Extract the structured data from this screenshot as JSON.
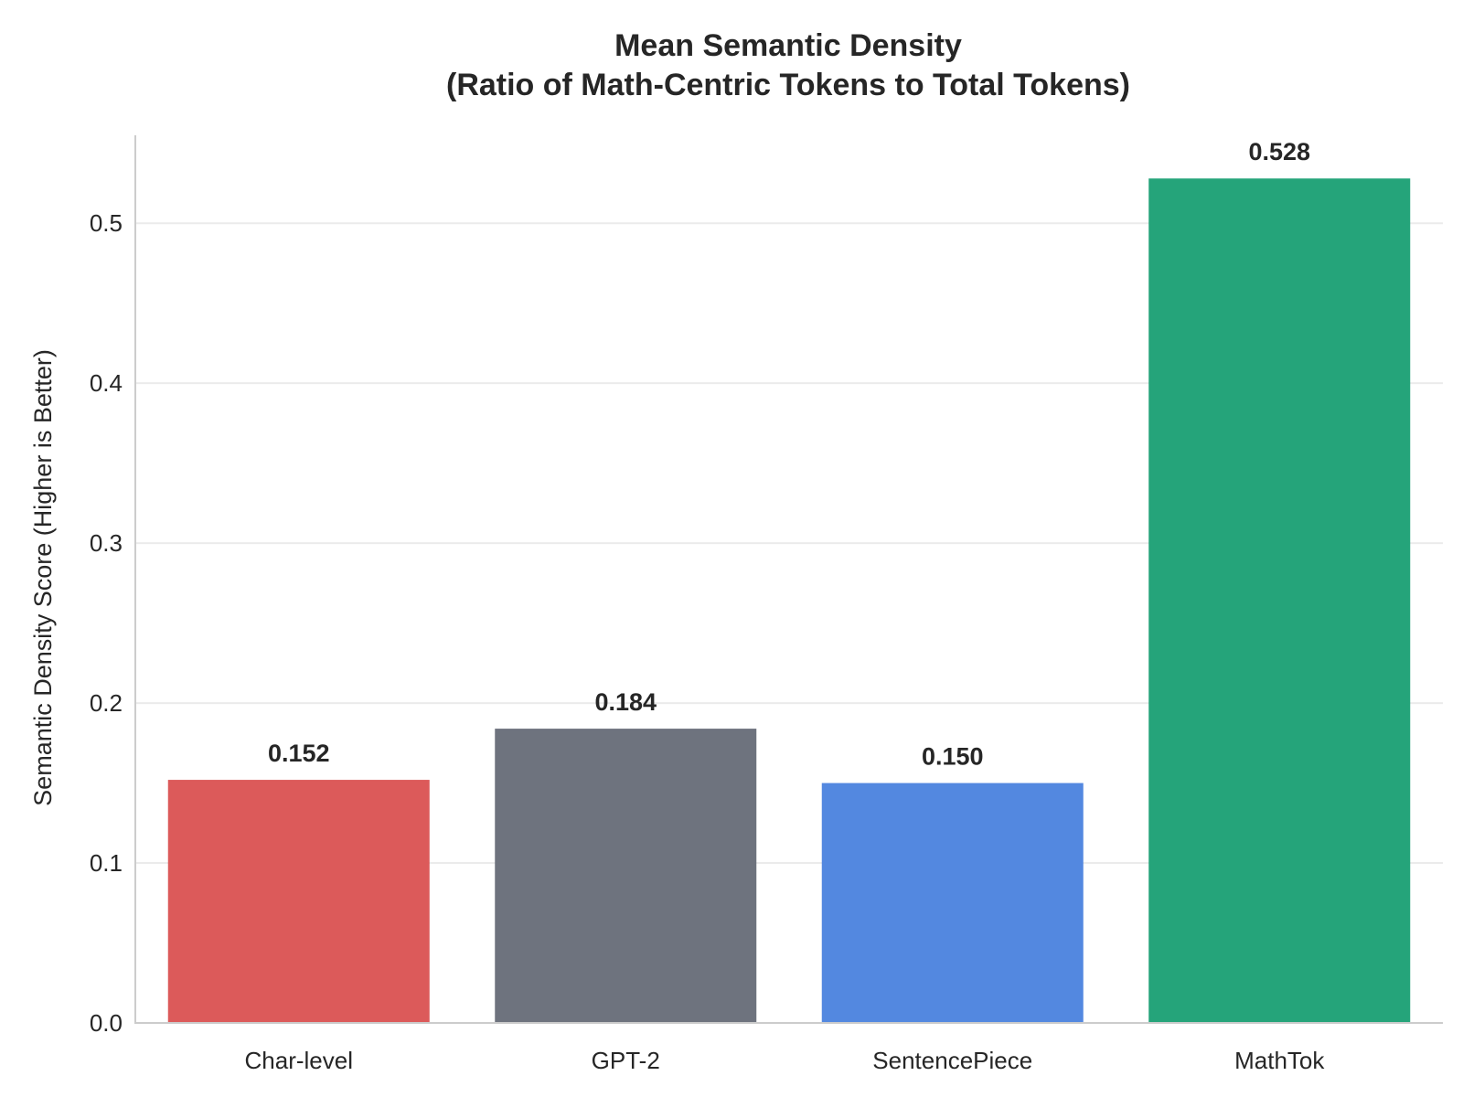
{
  "chart_data": {
    "type": "bar",
    "title_lines": [
      "Mean Semantic Density",
      "(Ratio of Math-Centric Tokens to Total Tokens)"
    ],
    "xlabel": "",
    "ylabel": "Semantic Density Score (Higher is Better)",
    "categories": [
      "Char-level",
      "GPT-2",
      "SentencePiece",
      "MathTok"
    ],
    "values": [
      0.152,
      0.184,
      0.15,
      0.528
    ],
    "value_labels": [
      "0.152",
      "0.184",
      "0.150",
      "0.528"
    ],
    "colors": [
      "#dc5a5a",
      "#6e737e",
      "#5388e0",
      "#25a47a"
    ],
    "ylim": [
      0,
      0.555
    ],
    "yticks": [
      0.0,
      0.1,
      0.2,
      0.3,
      0.4,
      0.5
    ],
    "ytick_labels": [
      "0.0",
      "0.1",
      "0.2",
      "0.3",
      "0.4",
      "0.5"
    ],
    "grid": true,
    "legend": "none"
  }
}
